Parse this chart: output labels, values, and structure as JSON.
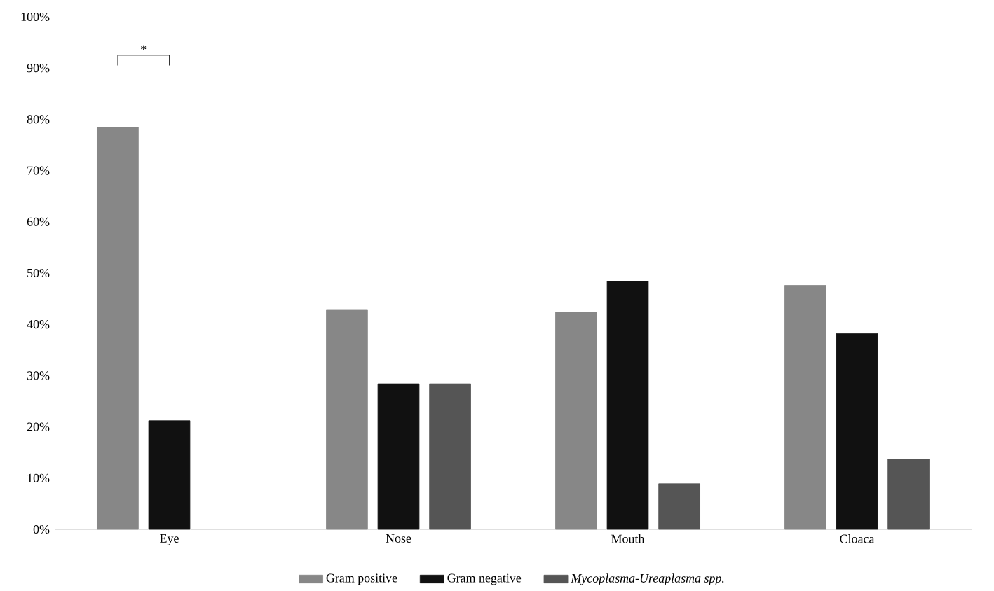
{
  "chart_data": {
    "type": "bar",
    "categories": [
      "Eye",
      "Nose",
      "Mouth",
      "Cloaca"
    ],
    "series": [
      {
        "name": "Gram positive",
        "color": "#878787",
        "values": [
          78.4,
          42.9,
          42.4,
          47.6
        ]
      },
      {
        "name": "Gram negative",
        "color": "#111111",
        "values": [
          21.2,
          28.4,
          48.4,
          38.2
        ]
      },
      {
        "name": "*Mycoplasma-Ureaplasma spp.*",
        "color": "#555555",
        "values": [
          null,
          28.4,
          8.9,
          13.7
        ]
      }
    ],
    "ylim": [
      0,
      100
    ],
    "yticks": [
      {
        "value": 0,
        "label": "0%"
      },
      {
        "value": 10,
        "label": "10%"
      },
      {
        "value": 20,
        "label": "20%"
      },
      {
        "value": 30,
        "label": "30%"
      },
      {
        "value": 40,
        "label": "40%"
      },
      {
        "value": 50,
        "label": "50%"
      },
      {
        "value": 60,
        "label": "60%"
      },
      {
        "value": 70,
        "label": "70%"
      },
      {
        "value": 80,
        "label": "80%"
      },
      {
        "value": 90,
        "label": "90%"
      },
      {
        "value": 100,
        "label": "100%"
      }
    ],
    "legend": "bottom",
    "annotations": [
      "*"
    ]
  }
}
